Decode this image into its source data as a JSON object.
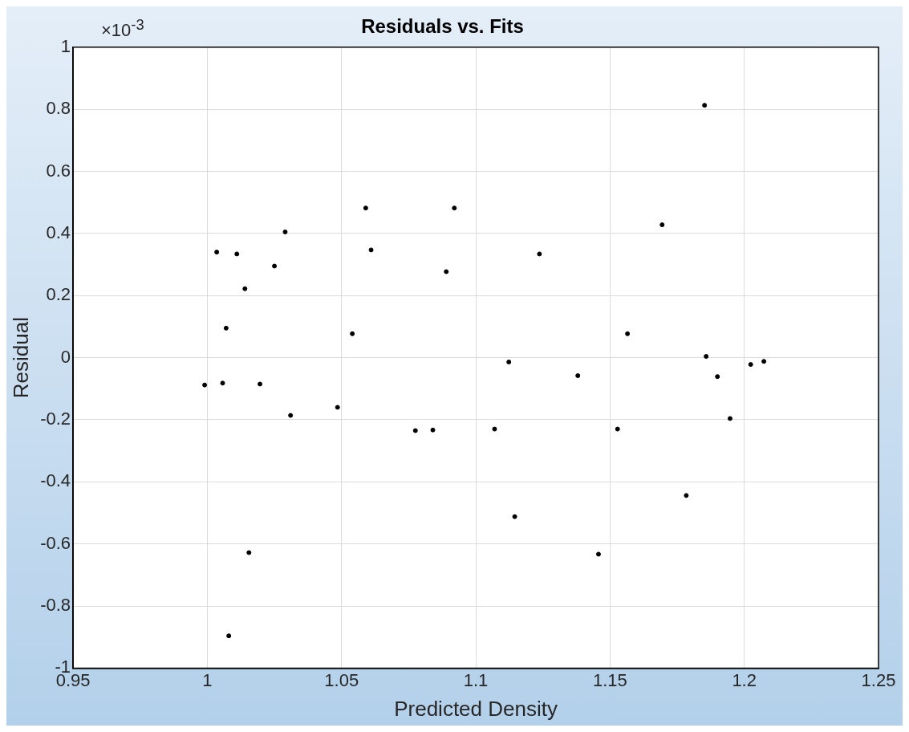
{
  "chart_data": {
    "type": "scatter",
    "title": "Residuals vs. Fits",
    "xlabel": "Predicted Density",
    "ylabel": "Residual",
    "annotations": [
      "×10$^{-3}$"
    ],
    "x": [
      0.999,
      1.0035,
      1.0057,
      1.007,
      1.008,
      1.011,
      1.014,
      1.0155,
      1.0196,
      1.025,
      1.029,
      1.031,
      1.0485,
      1.054,
      1.059,
      1.061,
      1.0775,
      1.084,
      1.089,
      1.092,
      1.107,
      1.1123,
      1.1145,
      1.1237,
      1.138,
      1.1457,
      1.1528,
      1.1565,
      1.1694,
      1.1784,
      1.1852,
      1.1858,
      1.19,
      1.1947,
      1.2024,
      1.2073
    ],
    "values": [
      -0.088,
      0.34,
      -0.082,
      0.095,
      -0.896,
      0.334,
      0.222,
      -0.628,
      -0.085,
      0.295,
      0.405,
      -0.186,
      -0.16,
      0.077,
      0.482,
      0.347,
      -0.235,
      -0.233,
      0.277,
      0.482,
      -0.23,
      -0.014,
      -0.512,
      0.334,
      -0.058,
      -0.633,
      -0.23,
      0.077,
      0.428,
      -0.444,
      0.813,
      0.004,
      -0.061,
      -0.196,
      -0.022,
      -0.012
    ],
    "color": "#000000",
    "marker": "circle",
    "grid": true,
    "xlim": [
      0.95,
      1.25
    ],
    "xticks": [
      0.95,
      1,
      1.05,
      1.1,
      1.15,
      1.2,
      1.25
    ],
    "ylim": [
      -1,
      1
    ],
    "yticks": [
      -1,
      -0.8,
      -0.6,
      -0.4,
      -0.2,
      0,
      0.2,
      0.4,
      0.6,
      0.8,
      1
    ]
  }
}
